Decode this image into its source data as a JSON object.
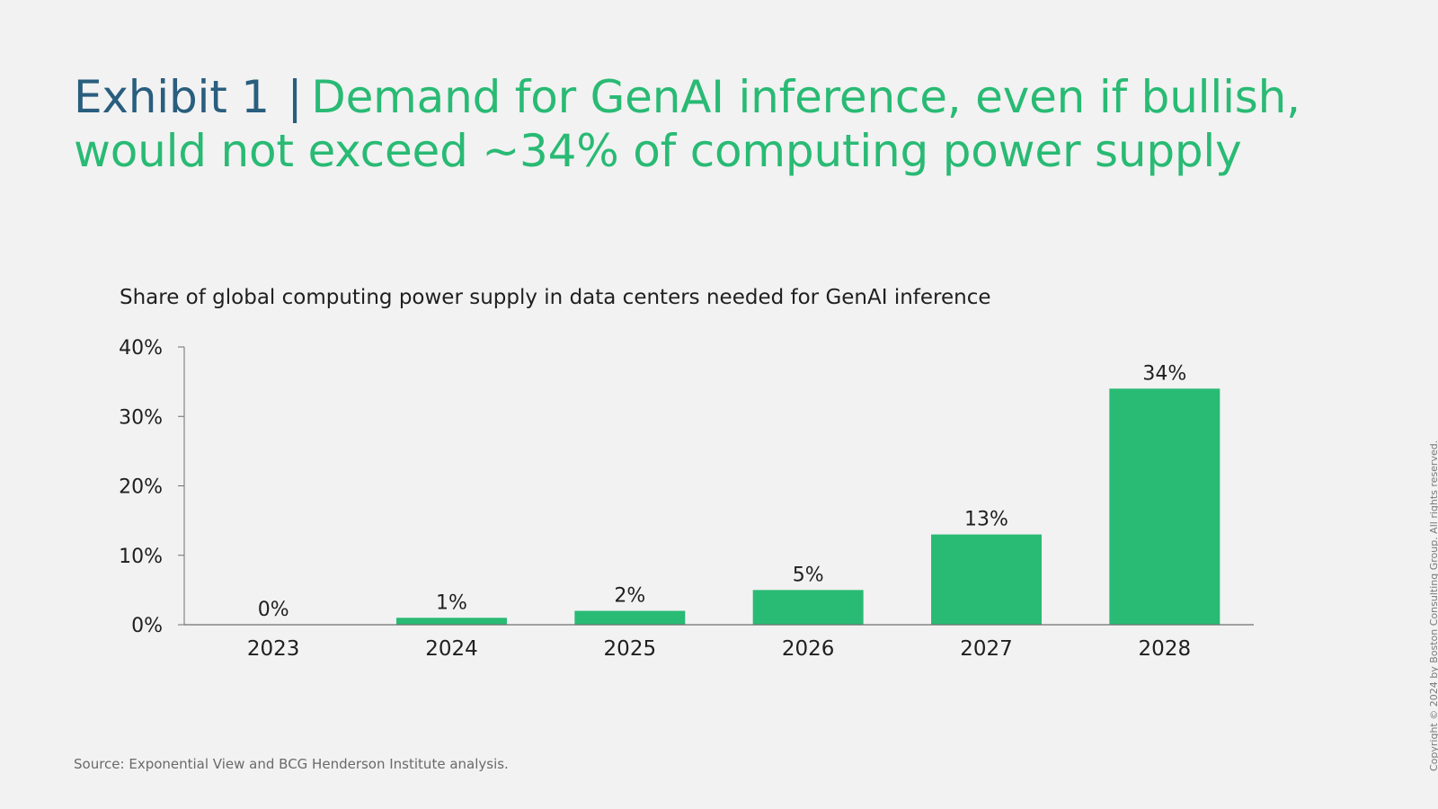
{
  "header": {
    "exhibit_label": "Exhibit 1",
    "separator": "|",
    "headline": "Demand for GenAI inference, even if bullish, would not exceed ~34% of computing power supply"
  },
  "chart_data": {
    "type": "bar",
    "title": "Share of global computing power supply in data centers needed for GenAI inference",
    "categories": [
      "2023",
      "2024",
      "2025",
      "2026",
      "2027",
      "2028"
    ],
    "values": [
      0,
      1,
      2,
      5,
      13,
      34
    ],
    "value_labels": [
      "0%",
      "1%",
      "2%",
      "5%",
      "13%",
      "34%"
    ],
    "ylim": [
      0,
      40
    ],
    "yticks": [
      0,
      10,
      20,
      30,
      40
    ],
    "ytick_labels": [
      "0%",
      "10%",
      "20%",
      "30%",
      "40%"
    ],
    "xlabel": "",
    "ylabel": "",
    "grid": false,
    "bar_color": "#29ba74"
  },
  "footer": {
    "source": "Source: Exponential View and BCG Henderson Institute analysis.",
    "copyright": "Copyright © 2024 by Boston Consulting Group. All rights reserved."
  },
  "colors": {
    "background": "#f2f2f2",
    "title_blue": "#295e7e",
    "title_green": "#29ba74",
    "text": "#1f1f1f"
  }
}
